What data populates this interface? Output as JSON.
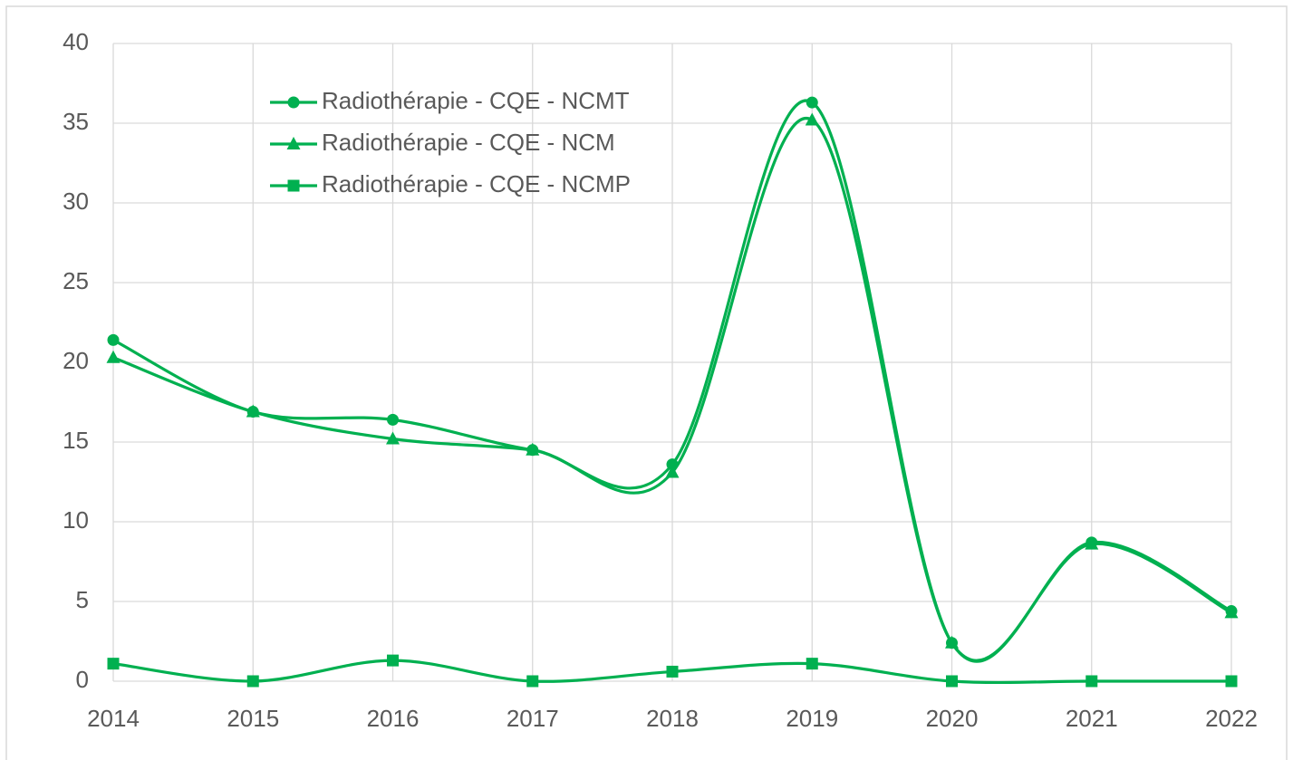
{
  "chart_data": {
    "type": "line",
    "categories": [
      "2014",
      "2015",
      "2016",
      "2017",
      "2018",
      "2019",
      "2020",
      "2021",
      "2022"
    ],
    "series": [
      {
        "name": "Radiothérapie - CQE - NCMT",
        "color": "#00b050",
        "marker": "circle",
        "values": [
          21.4,
          16.9,
          16.4,
          14.5,
          13.6,
          36.3,
          2.4,
          8.7,
          4.4
        ]
      },
      {
        "name": "Radiothérapie - CQE - NCM",
        "color": "#00b050",
        "marker": "triangle",
        "values": [
          20.3,
          16.9,
          15.2,
          14.5,
          13.1,
          35.2,
          2.4,
          8.6,
          4.3
        ]
      },
      {
        "name": "Radiothérapie - CQE - NCMP",
        "color": "#00b050",
        "marker": "square",
        "values": [
          1.1,
          0,
          1.3,
          0,
          0.6,
          1.1,
          0,
          0,
          0
        ]
      }
    ],
    "ylim": [
      0,
      40
    ],
    "yticks": [
      0,
      5,
      10,
      15,
      20,
      25,
      30,
      35,
      40
    ],
    "grid": true,
    "smooth": true,
    "legend": "upper left"
  }
}
